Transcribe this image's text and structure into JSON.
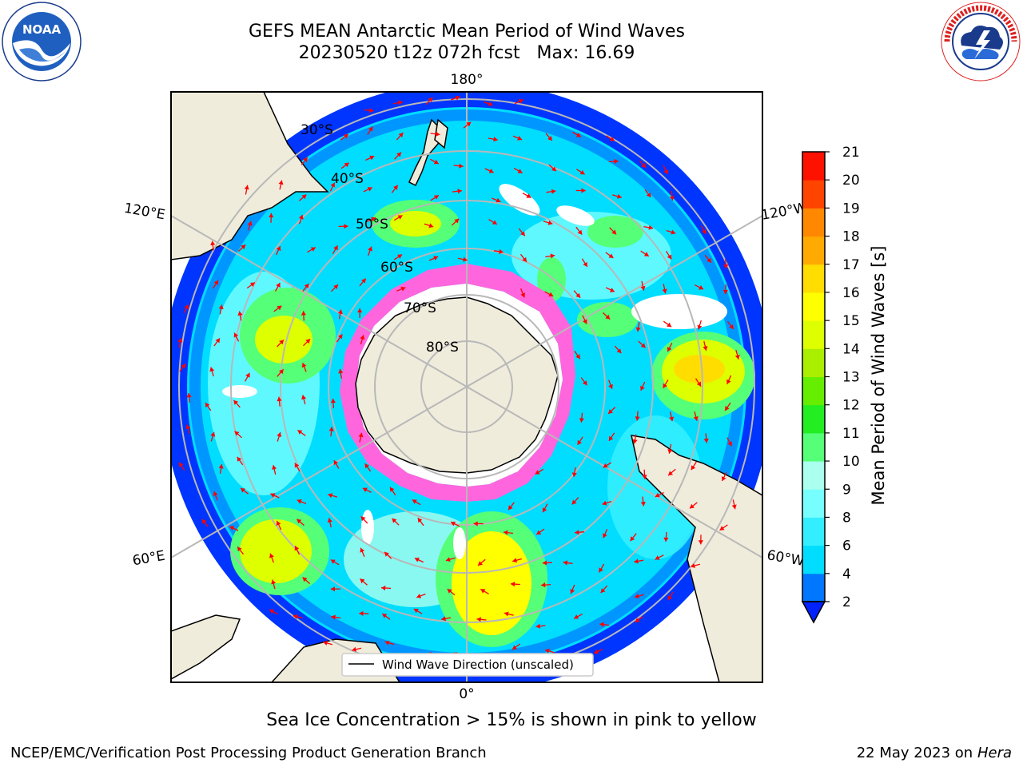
{
  "header": {
    "title_line1": "GEFS MEAN Antarctic Mean Period of Wind Waves",
    "title_line2": "20230520 t12z 072h fcst   Max: 16.69"
  },
  "logos": {
    "left": {
      "icon": "noaa-logo",
      "text": "NOAA",
      "ring_text": "NATIONAL OCEANIC AND ATMOSPHERIC ADMINISTRATION · U.S. DEPARTMENT OF COMMERCE"
    },
    "right": {
      "icon": "nws-logo",
      "ring_text": "NATIONAL WEATHER SERVICE"
    }
  },
  "map": {
    "projection": "south-polar-stereographic",
    "longitude_labels": {
      "top": "180°",
      "bottom": "0°",
      "upper_left": "120°E",
      "upper_right": "120°W",
      "lower_left": "60°E",
      "lower_right": "60°W"
    },
    "latitude_labels": [
      "30°S",
      "40°S",
      "50°S",
      "60°S",
      "70°S",
      "80°S"
    ],
    "legend": "Wind Wave Direction (unscaled)",
    "colors": {
      "land": "#efecdc",
      "ice": "#ff66dd",
      "arrows": "#ff0000",
      "grid": "#b8b8b8"
    }
  },
  "colorbar": {
    "label": "Mean Period of Wind Waves [s]",
    "ticks": [
      "2",
      "4",
      "6",
      "8",
      "9",
      "10",
      "11",
      "12",
      "13",
      "14",
      "15",
      "16",
      "17",
      "18",
      "19",
      "20",
      "21"
    ],
    "colors": [
      "#0022ff",
      "#0077ff",
      "#00ddff",
      "#33eeff",
      "#77ffff",
      "#aaffee",
      "#55ff77",
      "#22ee22",
      "#66ee00",
      "#aaee00",
      "#ddff00",
      "#ffff00",
      "#ffdd00",
      "#ffaa00",
      "#ff8800",
      "#ff4400",
      "#ff1100",
      "#ff0000"
    ]
  },
  "footer": {
    "note": "Sea Ice Concentration > 15% is shown in pink to yellow",
    "left": "NCEP/EMC/Verification Post Processing Product Generation Branch",
    "right_date": "22 May 2023 on",
    "right_machine": "Hera"
  }
}
